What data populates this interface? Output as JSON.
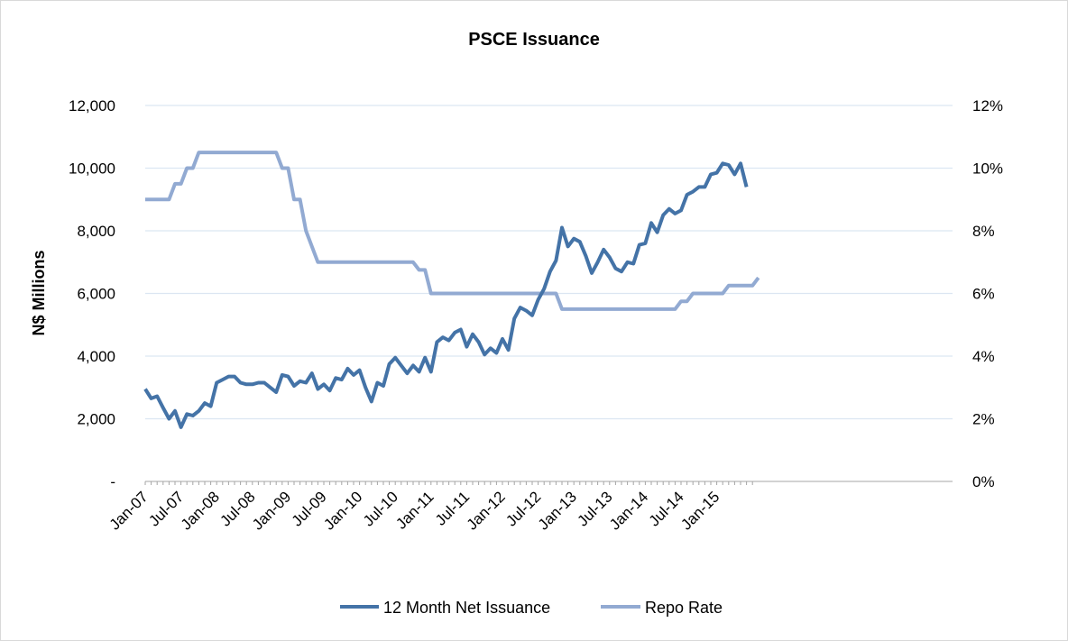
{
  "chart_data": {
    "type": "line",
    "title": "PSCE Issuance",
    "ylabel": "N$ Millions",
    "y2label": "",
    "xlabel": "",
    "ylim": [
      0,
      12000
    ],
    "y2lim": [
      0,
      12
    ],
    "y_ticks": [
      "-",
      "2,000",
      "4,000",
      "6,000",
      "8,000",
      "10,000",
      "12,000"
    ],
    "y2_ticks": [
      "0%",
      "2%",
      "4%",
      "6%",
      "8%",
      "10%",
      "12%"
    ],
    "x_ticks": [
      "Jan-07",
      "Jul-07",
      "Jan-08",
      "Jul-08",
      "Jan-09",
      "Jul-09",
      "Jan-10",
      "Jul-10",
      "Jan-11",
      "Jul-11",
      "Jan-12",
      "Jul-12",
      "Jan-13",
      "Jul-13",
      "Jan-14",
      "Jul-14",
      "Jan-15"
    ],
    "grid": true,
    "legend_position": "bottom",
    "colors": {
      "issuance": "#4473a7",
      "repo": "#92aad2",
      "grid": "#dce6f2",
      "axis": "#a6a6a6"
    },
    "series": [
      {
        "name": "12 Month Net Issuance",
        "axis": "left",
        "values": [
          2950,
          2650,
          2720,
          2350,
          2000,
          2250,
          1730,
          2150,
          2100,
          2250,
          2500,
          2400,
          3150,
          3250,
          3350,
          3350,
          3150,
          3100,
          3100,
          3150,
          3150,
          3000,
          2850,
          3400,
          3350,
          3050,
          3200,
          3150,
          3450,
          2950,
          3100,
          2900,
          3300,
          3250,
          3600,
          3400,
          3550,
          3000,
          2550,
          3150,
          3050,
          3750,
          3950,
          3700,
          3450,
          3700,
          3500,
          3950,
          3500,
          4450,
          4600,
          4500,
          4750,
          4850,
          4300,
          4700,
          4450,
          4050,
          4250,
          4100,
          4550,
          4200,
          5200,
          5550,
          5450,
          5300,
          5800,
          6150,
          6700,
          7050,
          8100,
          7500,
          7750,
          7650,
          7200,
          6650,
          7000,
          7400,
          7150,
          6800,
          6700,
          7000,
          6950,
          7550,
          7600,
          8250,
          7950,
          8500,
          8700,
          8550,
          8650,
          9150,
          9250,
          9400,
          9400,
          9800,
          9850,
          10150,
          10100,
          9800,
          10150,
          9400
        ]
      },
      {
        "name": "Repo Rate",
        "axis": "right",
        "values": [
          9,
          9,
          9,
          9,
          9,
          9.5,
          9.5,
          10,
          10,
          10.5,
          10.5,
          10.5,
          10.5,
          10.5,
          10.5,
          10.5,
          10.5,
          10.5,
          10.5,
          10.5,
          10.5,
          10.5,
          10.5,
          10,
          10,
          9,
          9,
          8,
          7.5,
          7,
          7,
          7,
          7,
          7,
          7,
          7,
          7,
          7,
          7,
          7,
          7,
          7,
          7,
          7,
          7,
          7,
          6.75,
          6.75,
          6,
          6,
          6,
          6,
          6,
          6,
          6,
          6,
          6,
          6,
          6,
          6,
          6,
          6,
          6,
          6,
          6,
          6,
          6,
          6,
          6,
          6,
          5.5,
          5.5,
          5.5,
          5.5,
          5.5,
          5.5,
          5.5,
          5.5,
          5.5,
          5.5,
          5.5,
          5.5,
          5.5,
          5.5,
          5.5,
          5.5,
          5.5,
          5.5,
          5.5,
          5.5,
          5.75,
          5.75,
          6,
          6,
          6,
          6,
          6,
          6,
          6.25,
          6.25,
          6.25,
          6.25,
          6.25,
          6.5
        ]
      }
    ]
  }
}
